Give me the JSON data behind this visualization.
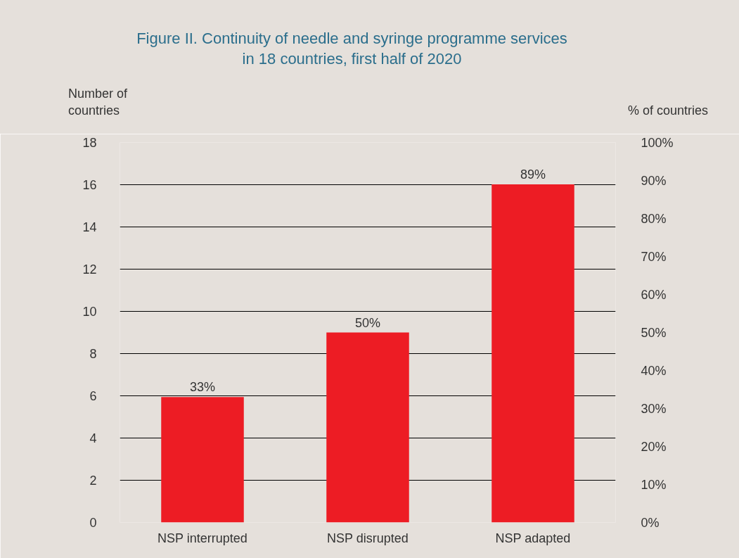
{
  "chart_data": {
    "type": "bar",
    "title": "Figure II.  Continuity of needle and syringe programme services in 18 countries, first half of 2020",
    "ylabel": "Number of countries",
    "y2label": "% of countries",
    "categories": [
      "NSP interrupted",
      "NSP disrupted",
      "NSP adapted"
    ],
    "series": [
      {
        "color": "#ed1c24",
        "axis": "y2",
        "values": [
          33,
          50,
          89
        ],
        "value_labels": [
          "33%",
          "50%",
          "89%"
        ]
      }
    ],
    "ylim": [
      0,
      18
    ],
    "yticks": [
      0,
      2,
      4,
      6,
      8,
      10,
      12,
      14,
      16,
      18
    ],
    "y2lim": [
      0,
      100
    ],
    "y2ticks": [
      {
        "value": 0,
        "label": "0%"
      },
      {
        "value": 10,
        "label": "10%"
      },
      {
        "value": 20,
        "label": "20%"
      },
      {
        "value": 30,
        "label": "30%"
      },
      {
        "value": 40,
        "label": "40%"
      },
      {
        "value": 50,
        "label": "50%"
      },
      {
        "value": 60,
        "label": "60%"
      },
      {
        "value": 70,
        "label": "70%"
      },
      {
        "value": 80,
        "label": "80%"
      },
      {
        "value": 90,
        "label": "90%"
      },
      {
        "value": 100,
        "label": "100%"
      }
    ],
    "grid": "y"
  }
}
